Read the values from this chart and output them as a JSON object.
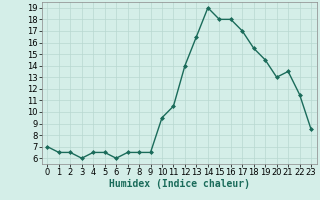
{
  "x": [
    0,
    1,
    2,
    3,
    4,
    5,
    6,
    7,
    8,
    9,
    10,
    11,
    12,
    13,
    14,
    15,
    16,
    17,
    18,
    19,
    20,
    21,
    22,
    23
  ],
  "y": [
    7,
    6.5,
    6.5,
    6,
    6.5,
    6.5,
    6,
    6.5,
    6.5,
    6.5,
    9.5,
    10.5,
    14,
    16.5,
    19,
    18,
    18,
    17,
    15.5,
    14.5,
    13,
    13.5,
    11.5,
    8.5
  ],
  "line_color": "#1a6b5a",
  "marker": "D",
  "marker_size": 2,
  "background_color": "#d4eee8",
  "grid_color": "#b8d8d0",
  "xlabel": "Humidex (Indice chaleur)",
  "ylim": [
    5.5,
    19.5
  ],
  "xlim": [
    -0.5,
    23.5
  ],
  "yticks": [
    6,
    7,
    8,
    9,
    10,
    11,
    12,
    13,
    14,
    15,
    16,
    17,
    18,
    19
  ],
  "xticks": [
    0,
    1,
    2,
    3,
    4,
    5,
    6,
    7,
    8,
    9,
    10,
    11,
    12,
    13,
    14,
    15,
    16,
    17,
    18,
    19,
    20,
    21,
    22,
    23
  ],
  "tick_fontsize": 6,
  "xlabel_fontsize": 7,
  "line_width": 1.0
}
